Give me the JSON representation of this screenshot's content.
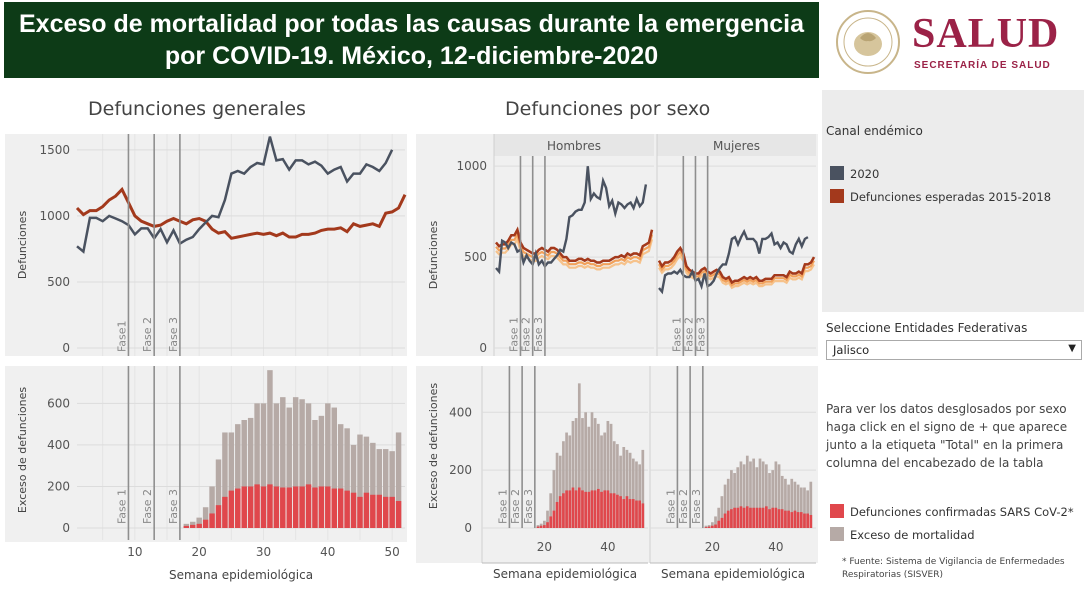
{
  "header": {
    "title_line1": "Exceso de mortalidad por todas las causas durante la emergencia",
    "title_line2": "por COVID-19. México, 12-diciembre-2020",
    "logo_word": "SALUD",
    "logo_sub": "SECRETARÍA DE SALUD",
    "brand_color": "#9b2247",
    "header_bg": "#0d3b17"
  },
  "sections": {
    "general_title": "Defunciones generales",
    "sex_title": "Defunciones por sexo",
    "hombres": "Hombres",
    "mujeres": "Mujeres"
  },
  "phases": {
    "labels": [
      "Fase1",
      "Fase 2",
      "Fase 3"
    ],
    "labels_bottom": [
      "Fase 1",
      "Fase 2",
      "Fase 3"
    ],
    "weeks": [
      9,
      13,
      17
    ]
  },
  "right_panel": {
    "canal_title": "Canal endémico",
    "legend_2020": "2020",
    "legend_expected": "Defunciones esperadas 2015-2018",
    "select_label": "Seleccione Entidades Federativas",
    "select_value": "Jalisco",
    "note": "Para ver los datos desglosados por sexo haga click en el signo de + que aparece junto a la etiqueta \"Total\" en la primera columna del encabezado de la tabla",
    "legend_confirmed": "Defunciones confirmadas SARS CoV-2*",
    "legend_excess": "Exceso de mortalidad",
    "footnote": "* Fuente: Sistema de Vigilancia de Enfermedades Respiratorias (SISVER)"
  },
  "colors": {
    "line_2020": "#4a5260",
    "expected": "#a3391c",
    "confirmed": "#e0474c",
    "excess": "#b6aaa6",
    "phase_line": "#8f8f8f",
    "panel_bg": "#f0f0f0"
  },
  "chart_data": [
    {
      "id": "general-lines",
      "type": "line",
      "title": "Defunciones generales",
      "ylabel": "Defunciones",
      "ylim": [
        0,
        1650
      ],
      "xlim": [
        1,
        52
      ],
      "yticks": [
        0,
        500,
        1000,
        1500
      ],
      "grid": true,
      "series": [
        {
          "name": "2020",
          "x": [
            1,
            2,
            3,
            4,
            5,
            6,
            7,
            8,
            9,
            10,
            11,
            12,
            13,
            14,
            15,
            16,
            17,
            18,
            19,
            20,
            21,
            22,
            23,
            24,
            25,
            26,
            27,
            28,
            29,
            30,
            31,
            32,
            33,
            34,
            35,
            36,
            37,
            38,
            39,
            40,
            41,
            42,
            43,
            44,
            45,
            46,
            47,
            48,
            49,
            50
          ],
          "values": [
            770,
            730,
            985,
            985,
            960,
            1000,
            980,
            960,
            930,
            860,
            905,
            905,
            830,
            900,
            800,
            890,
            790,
            820,
            840,
            900,
            950,
            1000,
            990,
            1120,
            1320,
            1340,
            1320,
            1370,
            1400,
            1390,
            1600,
            1420,
            1430,
            1350,
            1420,
            1420,
            1390,
            1410,
            1380,
            1320,
            1350,
            1370,
            1260,
            1320,
            1320,
            1390,
            1370,
            1340,
            1400,
            1500
          ]
        },
        {
          "name": "Defunciones esperadas 2015-2018",
          "x": [
            1,
            2,
            3,
            4,
            5,
            6,
            7,
            8,
            9,
            10,
            11,
            12,
            13,
            14,
            15,
            16,
            17,
            18,
            19,
            20,
            21,
            22,
            23,
            24,
            25,
            26,
            27,
            28,
            29,
            30,
            31,
            32,
            33,
            34,
            35,
            36,
            37,
            38,
            39,
            40,
            41,
            42,
            43,
            44,
            45,
            46,
            47,
            48,
            49,
            50,
            51,
            52
          ],
          "values": [
            1060,
            1010,
            1040,
            1040,
            1070,
            1120,
            1150,
            1200,
            1100,
            1000,
            960,
            940,
            920,
            930,
            960,
            980,
            960,
            940,
            970,
            980,
            960,
            900,
            870,
            880,
            830,
            840,
            850,
            860,
            870,
            860,
            870,
            850,
            870,
            840,
            840,
            860,
            860,
            870,
            890,
            900,
            900,
            910,
            880,
            940,
            920,
            930,
            940,
            920,
            1020,
            1030,
            1060,
            1160
          ]
        }
      ]
    },
    {
      "id": "general-bars",
      "type": "bar",
      "ylabel": "Exceso de defunciones",
      "xlabel": "Semana epidemiológica",
      "ylim": [
        0,
        780
      ],
      "xlim": [
        1,
        52
      ],
      "yticks": [
        0,
        200,
        400,
        600
      ],
      "xticks": [
        10,
        20,
        30,
        40,
        50
      ],
      "weeks": [
        18,
        19,
        20,
        21,
        22,
        23,
        24,
        25,
        26,
        27,
        28,
        29,
        30,
        31,
        32,
        33,
        34,
        35,
        36,
        37,
        38,
        39,
        40,
        41,
        42,
        43,
        44,
        45,
        46,
        47,
        48,
        49,
        50,
        51
      ],
      "series": [
        {
          "name": "Defunciones confirmadas SARS CoV-2*",
          "values": [
            10,
            15,
            20,
            40,
            70,
            110,
            150,
            180,
            190,
            200,
            200,
            210,
            200,
            210,
            200,
            195,
            195,
            200,
            200,
            210,
            195,
            200,
            200,
            190,
            190,
            180,
            170,
            150,
            170,
            160,
            160,
            150,
            150,
            130
          ]
        },
        {
          "name": "Exceso de mortalidad",
          "values": [
            20,
            30,
            50,
            100,
            200,
            330,
            460,
            460,
            500,
            520,
            530,
            600,
            600,
            760,
            600,
            630,
            580,
            630,
            620,
            600,
            520,
            540,
            600,
            580,
            500,
            480,
            400,
            450,
            440,
            410,
            380,
            380,
            370,
            460
          ]
        }
      ]
    },
    {
      "id": "sexo-lines",
      "type": "line",
      "title": "Defunciones por sexo",
      "ylabel": "Defunciones",
      "ylim": [
        0,
        1100
      ],
      "yticks": [
        0,
        500,
        1000
      ],
      "facets": [
        "Hombres",
        "Mujeres"
      ],
      "grid": true,
      "series_hombres": [
        {
          "name": "2020",
          "x": [
            1,
            2,
            3,
            4,
            5,
            6,
            7,
            8,
            9,
            10,
            11,
            12,
            13,
            14,
            15,
            16,
            17,
            18,
            19,
            20,
            21,
            22,
            23,
            24,
            25,
            26,
            27,
            28,
            29,
            30,
            31,
            32,
            33,
            34,
            35,
            36,
            37,
            38,
            39,
            40,
            41,
            42,
            43,
            44,
            45,
            46,
            47,
            48,
            49,
            50
          ],
          "values": [
            440,
            420,
            590,
            580,
            550,
            580,
            570,
            530,
            540,
            470,
            510,
            480,
            460,
            520,
            460,
            480,
            450,
            470,
            470,
            490,
            510,
            540,
            530,
            600,
            720,
            730,
            750,
            760,
            760,
            800,
            1000,
            820,
            850,
            830,
            820,
            920,
            880,
            780,
            810,
            740,
            800,
            790,
            770,
            790,
            800,
            770,
            820,
            780,
            800,
            900
          ]
        },
        {
          "name": "Defunciones esperadas 2015-2018",
          "x": [
            1,
            2,
            3,
            4,
            5,
            6,
            7,
            8,
            9,
            10,
            11,
            12,
            13,
            14,
            15,
            16,
            17,
            18,
            19,
            20,
            21,
            22,
            23,
            24,
            25,
            26,
            27,
            28,
            29,
            30,
            31,
            32,
            33,
            34,
            35,
            36,
            37,
            38,
            39,
            40,
            41,
            42,
            43,
            44,
            45,
            46,
            47,
            48,
            49,
            50,
            51,
            52
          ],
          "values": [
            580,
            560,
            570,
            570,
            590,
            620,
            620,
            650,
            580,
            550,
            540,
            530,
            520,
            520,
            540,
            550,
            540,
            530,
            550,
            550,
            540,
            520,
            500,
            500,
            480,
            480,
            480,
            490,
            490,
            480,
            490,
            480,
            480,
            470,
            470,
            480,
            480,
            480,
            490,
            500,
            500,
            510,
            500,
            520,
            510,
            520,
            520,
            510,
            560,
            570,
            580,
            650
          ]
        }
      ],
      "series_mujeres": [
        {
          "name": "2020",
          "x": [
            1,
            2,
            3,
            4,
            5,
            6,
            7,
            8,
            9,
            10,
            11,
            12,
            13,
            14,
            15,
            16,
            17,
            18,
            19,
            20,
            21,
            22,
            23,
            24,
            25,
            26,
            27,
            28,
            29,
            30,
            31,
            32,
            33,
            34,
            35,
            36,
            37,
            38,
            39,
            40,
            41,
            42,
            43,
            44,
            45,
            46,
            47,
            48,
            49,
            50
          ],
          "values": [
            330,
            310,
            400,
            410,
            410,
            420,
            410,
            430,
            400,
            390,
            390,
            420,
            370,
            380,
            340,
            410,
            340,
            350,
            370,
            410,
            440,
            460,
            460,
            520,
            600,
            610,
            570,
            610,
            640,
            600,
            600,
            600,
            580,
            520,
            600,
            600,
            610,
            630,
            570,
            580,
            550,
            580,
            570,
            530,
            520,
            570,
            600,
            560,
            600,
            610
          ]
        },
        {
          "name": "Defunciones esperadas 2015-2018",
          "x": [
            1,
            2,
            3,
            4,
            5,
            6,
            7,
            8,
            9,
            10,
            11,
            12,
            13,
            14,
            15,
            16,
            17,
            18,
            19,
            20,
            21,
            22,
            23,
            24,
            25,
            26,
            27,
            28,
            29,
            30,
            31,
            32,
            33,
            34,
            35,
            36,
            37,
            38,
            39,
            40,
            41,
            42,
            43,
            44,
            45,
            46,
            47,
            48,
            49,
            50,
            51,
            52
          ],
          "values": [
            480,
            450,
            470,
            470,
            480,
            500,
            530,
            550,
            520,
            450,
            430,
            420,
            410,
            410,
            430,
            440,
            420,
            410,
            420,
            430,
            420,
            390,
            380,
            390,
            360,
            370,
            370,
            380,
            390,
            380,
            390,
            380,
            390,
            370,
            370,
            380,
            380,
            380,
            400,
            400,
            400,
            400,
            390,
            420,
            410,
            410,
            420,
            410,
            460,
            460,
            470,
            500
          ]
        }
      ]
    },
    {
      "id": "sexo-bars",
      "type": "bar",
      "ylabel": "Exceso de defunciones",
      "xlabel": "Semana epidemiológica",
      "ylim": [
        0,
        560
      ],
      "yticks": [
        0,
        200,
        400
      ],
      "xticks": [
        20,
        40
      ],
      "facets": [
        "Hombres",
        "Mujeres"
      ],
      "weeks": [
        18,
        19,
        20,
        21,
        22,
        23,
        24,
        25,
        26,
        27,
        28,
        29,
        30,
        31,
        32,
        33,
        34,
        35,
        36,
        37,
        38,
        39,
        40,
        41,
        42,
        43,
        44,
        45,
        46,
        47,
        48,
        49,
        50,
        51
      ],
      "hombres": [
        {
          "name": "Defunciones confirmadas SARS CoV-2*",
          "values": [
            5,
            8,
            10,
            20,
            40,
            60,
            90,
            110,
            120,
            130,
            130,
            140,
            130,
            140,
            130,
            125,
            125,
            130,
            130,
            135,
            125,
            130,
            130,
            120,
            120,
            115,
            110,
            100,
            110,
            100,
            100,
            95,
            95,
            85
          ]
        },
        {
          "name": "Exceso de mortalidad",
          "values": [
            10,
            15,
            25,
            60,
            120,
            200,
            260,
            250,
            300,
            330,
            320,
            370,
            380,
            500,
            380,
            400,
            350,
            400,
            380,
            360,
            320,
            330,
            370,
            360,
            300,
            290,
            250,
            280,
            270,
            260,
            240,
            230,
            220,
            270
          ]
        }
      ],
      "mujeres": [
        {
          "name": "Defunciones confirmadas SARS CoV-2*",
          "values": [
            3,
            5,
            8,
            12,
            25,
            35,
            50,
            60,
            65,
            70,
            70,
            75,
            70,
            75,
            70,
            70,
            70,
            70,
            70,
            75,
            65,
            70,
            70,
            65,
            65,
            60,
            60,
            55,
            60,
            55,
            55,
            50,
            50,
            45
          ]
        },
        {
          "name": "Exceso de mortalidad",
          "values": [
            8,
            10,
            20,
            40,
            70,
            110,
            150,
            170,
            200,
            190,
            210,
            230,
            220,
            250,
            230,
            240,
            210,
            240,
            230,
            220,
            190,
            200,
            230,
            220,
            180,
            170,
            150,
            170,
            160,
            150,
            140,
            140,
            130,
            160
          ]
        }
      ]
    }
  ]
}
